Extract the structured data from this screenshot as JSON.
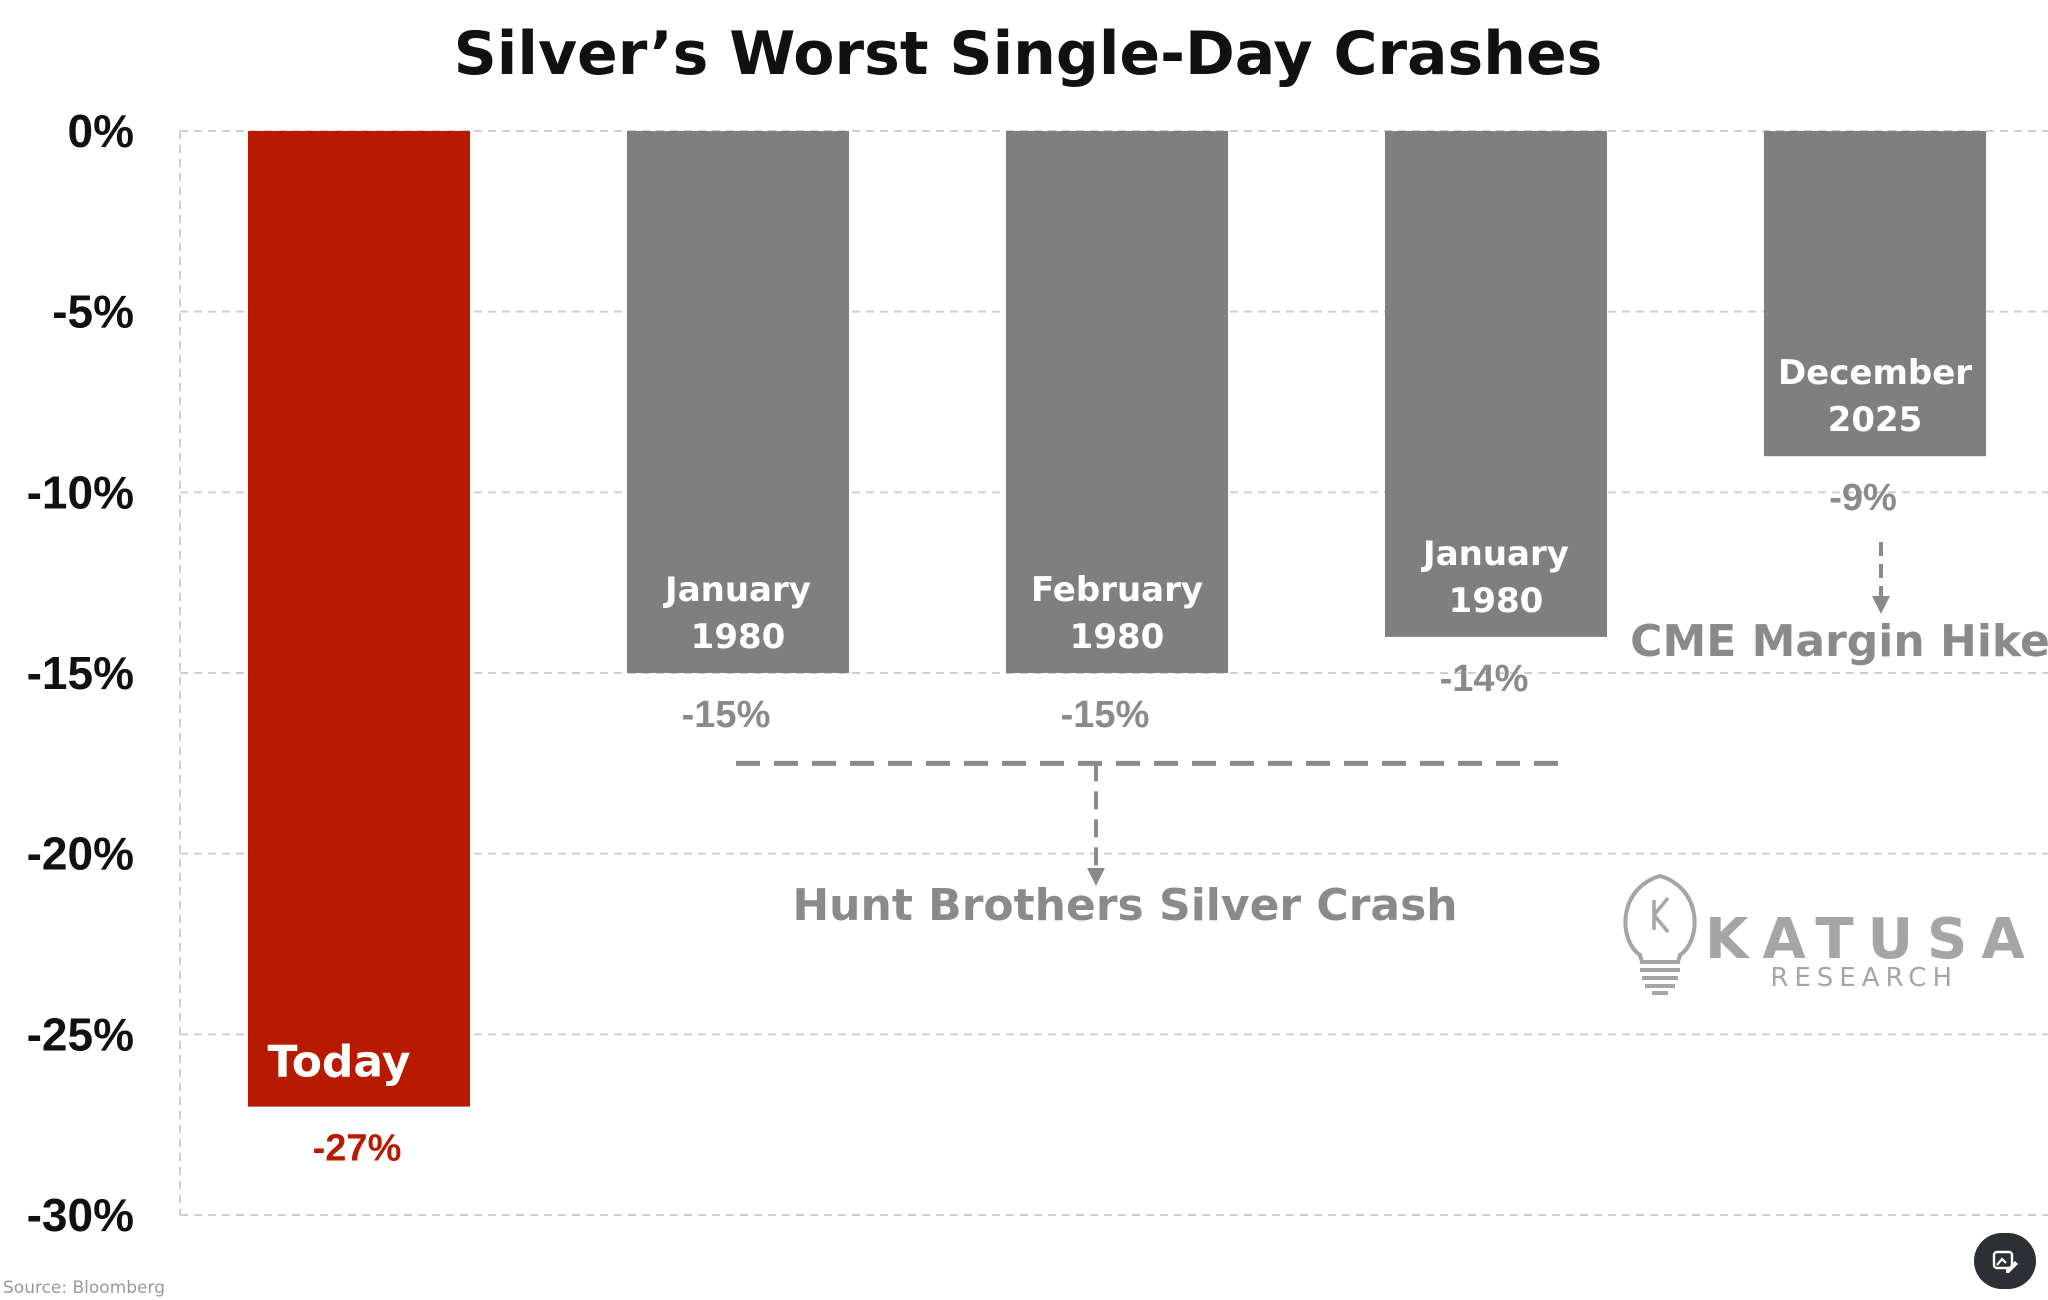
{
  "chart_data": {
    "type": "bar",
    "title": "Silver’s Worst Single-Day Crashes",
    "categories": [
      "Today",
      "January 1980",
      "February 1980",
      "January 1980",
      "December 2025"
    ],
    "category_lines": [
      [
        "Today"
      ],
      [
        "January",
        "1980"
      ],
      [
        "February",
        "1980"
      ],
      [
        "January",
        "1980"
      ],
      [
        "December",
        "2025"
      ]
    ],
    "values": [
      -27,
      -15,
      -15,
      -14,
      -9
    ],
    "data_labels": [
      "-27%",
      "-15%",
      "-15%",
      "-14%",
      "-9%"
    ],
    "yticks": [
      "0%",
      "-5%",
      "-10%",
      "-15%",
      "-20%",
      "-25%",
      "-30%"
    ],
    "ylim": [
      -30,
      0
    ],
    "grid": true,
    "colors": {
      "highlight": "#b81a00",
      "bar": "#7f7f7f",
      "annotation": "#8a8a8a",
      "grid": "#cfcfcf"
    },
    "annotations": [
      {
        "text": "Hunt Brothers Silver Crash",
        "refers_to": [
          1,
          2,
          3
        ]
      },
      {
        "text": "CME Margin Hike",
        "refers_to": [
          4
        ]
      }
    ]
  },
  "logo": {
    "main": "KATUSA",
    "sub": "RESEARCH",
    "monogram": "K"
  },
  "source": "Source: Bloomberg",
  "edit_icon": "image-edit-icon"
}
